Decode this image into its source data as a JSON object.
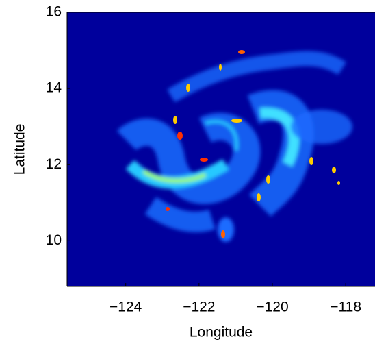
{
  "chart_data": {
    "type": "heatmap",
    "xlabel": "Longitude",
    "ylabel": "Latitude",
    "xlim": [
      -125.6,
      -117.2
    ],
    "ylim": [
      8.8,
      16
    ],
    "xticks": [
      {
        "value": -124,
        "label": "−124"
      },
      {
        "value": -122,
        "label": "−122"
      },
      {
        "value": -120,
        "label": "−120"
      },
      {
        "value": -118,
        "label": "−118"
      }
    ],
    "yticks": [
      10,
      12,
      14,
      16
    ],
    "color": "#00009c"
  }
}
